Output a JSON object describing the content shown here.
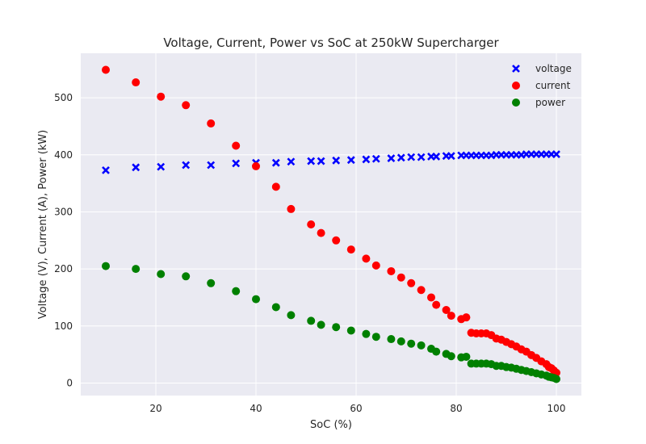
{
  "chart_data": {
    "type": "scatter",
    "title": "Voltage, Current, Power vs SoC at 250kW Supercharger",
    "xlabel": "SoC (%)",
    "ylabel": "Voltage (V), Current (A), Power (kW)",
    "xlim": [
      5,
      105
    ],
    "ylim": [
      -22,
      578
    ],
    "xticks": [
      20,
      40,
      60,
      80,
      100
    ],
    "yticks": [
      0,
      100,
      200,
      300,
      400,
      500
    ],
    "grid": true,
    "legend_position": "top-right",
    "background": "#eaeaf2",
    "series": [
      {
        "name": "voltage",
        "color": "#0000ff",
        "marker": "x",
        "points": [
          [
            10,
            373
          ],
          [
            16,
            378
          ],
          [
            21,
            379
          ],
          [
            26,
            382
          ],
          [
            31,
            382
          ],
          [
            36,
            385
          ],
          [
            40,
            386
          ],
          [
            44,
            386
          ],
          [
            47,
            388
          ],
          [
            51,
            389
          ],
          [
            53,
            389
          ],
          [
            56,
            390
          ],
          [
            59,
            391
          ],
          [
            62,
            392
          ],
          [
            64,
            393
          ],
          [
            67,
            394
          ],
          [
            69,
            395
          ],
          [
            71,
            396
          ],
          [
            73,
            396
          ],
          [
            75,
            397
          ],
          [
            76,
            397
          ],
          [
            78,
            398
          ],
          [
            79,
            398
          ],
          [
            81,
            399
          ],
          [
            82,
            399
          ],
          [
            83,
            399
          ],
          [
            84,
            399
          ],
          [
            85,
            399
          ],
          [
            86,
            399
          ],
          [
            87,
            399
          ],
          [
            88,
            400
          ],
          [
            89,
            400
          ],
          [
            90,
            400
          ],
          [
            91,
            400
          ],
          [
            92,
            400
          ],
          [
            93,
            400
          ],
          [
            94,
            401
          ],
          [
            95,
            401
          ],
          [
            96,
            401
          ],
          [
            97,
            401
          ],
          [
            98,
            401
          ],
          [
            99,
            401
          ],
          [
            100,
            401
          ]
        ]
      },
      {
        "name": "current",
        "color": "#ff0000",
        "marker": "o",
        "points": [
          [
            10,
            549
          ],
          [
            16,
            527
          ],
          [
            21,
            502
          ],
          [
            26,
            487
          ],
          [
            31,
            455
          ],
          [
            36,
            416
          ],
          [
            40,
            380
          ],
          [
            44,
            344
          ],
          [
            47,
            305
          ],
          [
            51,
            278
          ],
          [
            53,
            263
          ],
          [
            56,
            250
          ],
          [
            59,
            234
          ],
          [
            62,
            218
          ],
          [
            64,
            206
          ],
          [
            67,
            196
          ],
          [
            69,
            185
          ],
          [
            71,
            175
          ],
          [
            73,
            163
          ],
          [
            75,
            150
          ],
          [
            76,
            137
          ],
          [
            78,
            128
          ],
          [
            79,
            118
          ],
          [
            81,
            112
          ],
          [
            82,
            115
          ],
          [
            83,
            88
          ],
          [
            84,
            87
          ],
          [
            85,
            87
          ],
          [
            86,
            87
          ],
          [
            87,
            84
          ],
          [
            88,
            78
          ],
          [
            89,
            76
          ],
          [
            90,
            72
          ],
          [
            91,
            68
          ],
          [
            92,
            64
          ],
          [
            93,
            59
          ],
          [
            94,
            55
          ],
          [
            95,
            49
          ],
          [
            96,
            44
          ],
          [
            97,
            38
          ],
          [
            98,
            33
          ],
          [
            98.5,
            28
          ],
          [
            99,
            26
          ],
          [
            99.5,
            22
          ],
          [
            100,
            18
          ]
        ]
      },
      {
        "name": "power",
        "color": "#008000",
        "marker": "o",
        "points": [
          [
            10,
            205
          ],
          [
            16,
            200
          ],
          [
            21,
            191
          ],
          [
            26,
            187
          ],
          [
            31,
            175
          ],
          [
            36,
            161
          ],
          [
            40,
            147
          ],
          [
            44,
            133
          ],
          [
            47,
            119
          ],
          [
            51,
            109
          ],
          [
            53,
            102
          ],
          [
            56,
            98
          ],
          [
            59,
            92
          ],
          [
            62,
            86
          ],
          [
            64,
            81
          ],
          [
            67,
            77
          ],
          [
            69,
            73
          ],
          [
            71,
            69
          ],
          [
            73,
            66
          ],
          [
            75,
            60
          ],
          [
            76,
            55
          ],
          [
            78,
            51
          ],
          [
            79,
            47
          ],
          [
            81,
            45
          ],
          [
            82,
            46
          ],
          [
            83,
            34
          ],
          [
            84,
            34
          ],
          [
            85,
            34
          ],
          [
            86,
            34
          ],
          [
            87,
            33
          ],
          [
            88,
            30
          ],
          [
            89,
            30
          ],
          [
            90,
            28
          ],
          [
            91,
            27
          ],
          [
            92,
            25
          ],
          [
            93,
            23
          ],
          [
            94,
            21
          ],
          [
            95,
            19
          ],
          [
            96,
            17
          ],
          [
            97,
            15
          ],
          [
            98,
            13
          ],
          [
            98.5,
            11
          ],
          [
            99,
            10
          ],
          [
            99.5,
            9
          ],
          [
            100,
            7
          ]
        ]
      }
    ]
  }
}
